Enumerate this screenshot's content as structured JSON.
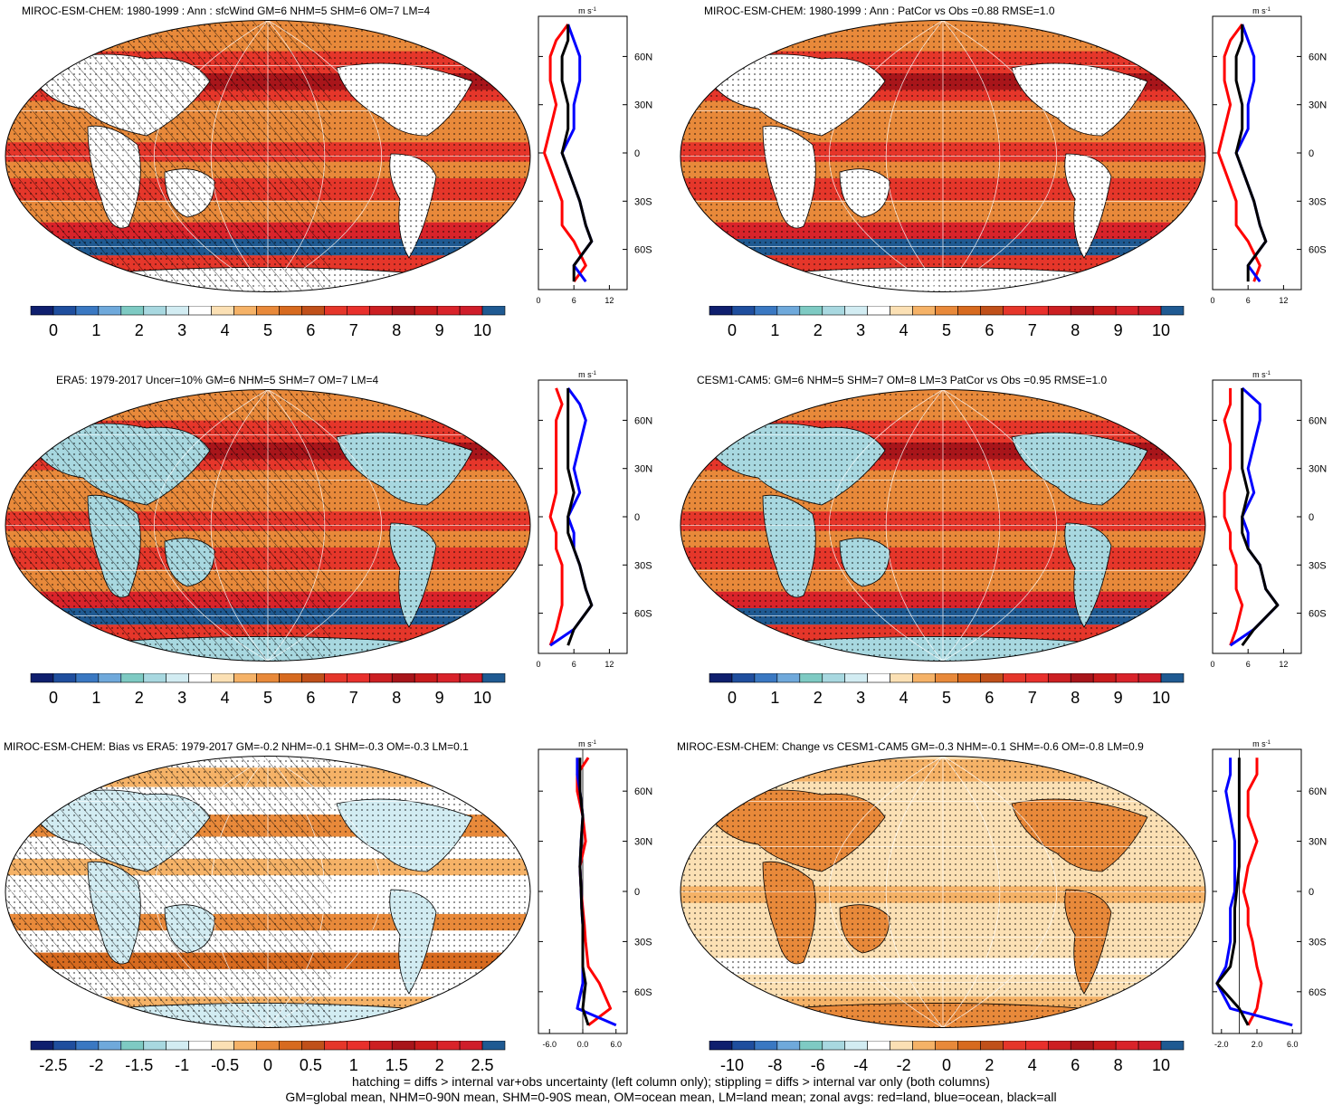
{
  "footer": {
    "line1": "hatching = diffs > internal var+obs uncertainty (left column only); stippling = diffs > internal var only (both columns)",
    "line2": "GM=global mean, NHM=0-90N mean, SHM=0-90S mean, OM=ocean mean, LM=land mean; zonal avgs: red=land, blue=ocean, black=all"
  },
  "palettes": {
    "abs": [
      "#0f1f6e",
      "#1f4e9e",
      "#3a78c2",
      "#6fa9db",
      "#7ecac3",
      "#a8d8e0",
      "#d2ecf2",
      "#ffffff",
      "#fbe0b4",
      "#f5b267",
      "#e8893a",
      "#d76a1f",
      "#c0501a",
      "#e5362a",
      "#e8302c",
      "#cc1f22",
      "#a8151a",
      "#c81b1c",
      "#d9232a",
      "#cf1d2a",
      "#1f5a92"
    ],
    "bias": [
      "#0f1f6e",
      "#1f4e9e",
      "#3a78c2",
      "#6fa9db",
      "#7ecac3",
      "#a8d8e0",
      "#d2ecf2",
      "#ffffff",
      "#fbe0b4",
      "#f5b267",
      "#e8893a",
      "#d76a1f",
      "#c0501a",
      "#e5362a",
      "#e8302c",
      "#cc1f22",
      "#a8151a",
      "#c81b1c",
      "#d9232a",
      "#cf1d2a",
      "#1f5a92"
    ]
  },
  "chart_data": [
    {
      "type": "heatmap",
      "title": "MIROC-ESM-CHEM: 1980-1999 : Ann : sfcWind GM=6 NHM=5 SHM=6 OM=7 LM=4",
      "colorbar_ticks": [
        "0",
        "1",
        "2",
        "3",
        "4",
        "5",
        "6",
        "7",
        "8",
        "9",
        "10"
      ],
      "colorbar_range": [
        0,
        10
      ],
      "zonal": {
        "unit": "m s-1",
        "xticks": [
          "0",
          "6",
          "12"
        ],
        "xrange": [
          0,
          15
        ],
        "lat_ticks": [
          "60N",
          "30N",
          "0",
          "30S",
          "60S"
        ],
        "land": [
          [
            80,
            5
          ],
          [
            70,
            3
          ],
          [
            60,
            2
          ],
          [
            45,
            2
          ],
          [
            30,
            3
          ],
          [
            15,
            2
          ],
          [
            0,
            1
          ],
          [
            -10,
            2
          ],
          [
            -20,
            3
          ],
          [
            -30,
            4
          ],
          [
            -45,
            4
          ],
          [
            -55,
            6
          ],
          [
            -70,
            8
          ],
          [
            -80,
            6
          ]
        ],
        "ocean": [
          [
            80,
            5
          ],
          [
            70,
            6
          ],
          [
            60,
            7
          ],
          [
            45,
            7
          ],
          [
            30,
            6
          ],
          [
            15,
            6
          ],
          [
            0,
            4
          ],
          [
            -10,
            5
          ],
          [
            -20,
            6
          ],
          [
            -30,
            7
          ],
          [
            -45,
            8
          ],
          [
            -55,
            9
          ],
          [
            -70,
            6
          ],
          [
            -80,
            8
          ]
        ],
        "all": [
          [
            80,
            5
          ],
          [
            70,
            5
          ],
          [
            60,
            4
          ],
          [
            45,
            4
          ],
          [
            30,
            5
          ],
          [
            15,
            5
          ],
          [
            0,
            4
          ],
          [
            -10,
            5
          ],
          [
            -20,
            6
          ],
          [
            -30,
            7
          ],
          [
            -45,
            8
          ],
          [
            -55,
            9
          ],
          [
            -70,
            6
          ],
          [
            -80,
            6
          ]
        ]
      },
      "hatched": true
    },
    {
      "type": "heatmap",
      "title": "MIROC-ESM-CHEM: 1980-1999 : Ann : PatCor vs Obs =0.88 RMSE=1.0",
      "colorbar_ticks": [
        "0",
        "1",
        "2",
        "3",
        "4",
        "5",
        "6",
        "7",
        "8",
        "9",
        "10"
      ],
      "colorbar_range": [
        0,
        10
      ],
      "zonal": {
        "unit": "m s-1",
        "xticks": [
          "0",
          "6",
          "12"
        ],
        "xrange": [
          0,
          15
        ],
        "lat_ticks": [
          "60N",
          "30N",
          "0",
          "30S",
          "60S"
        ],
        "land": [
          [
            80,
            5
          ],
          [
            70,
            3
          ],
          [
            60,
            2
          ],
          [
            45,
            2
          ],
          [
            30,
            3
          ],
          [
            15,
            2
          ],
          [
            0,
            1
          ],
          [
            -10,
            2
          ],
          [
            -20,
            3
          ],
          [
            -30,
            4
          ],
          [
            -45,
            4
          ],
          [
            -55,
            6
          ],
          [
            -70,
            8
          ],
          [
            -80,
            7
          ]
        ],
        "ocean": [
          [
            80,
            5
          ],
          [
            70,
            6
          ],
          [
            60,
            7
          ],
          [
            45,
            7
          ],
          [
            30,
            6
          ],
          [
            15,
            6
          ],
          [
            0,
            4
          ],
          [
            -10,
            5
          ],
          [
            -20,
            6
          ],
          [
            -30,
            7
          ],
          [
            -45,
            8
          ],
          [
            -55,
            9
          ],
          [
            -70,
            6
          ],
          [
            -80,
            8
          ]
        ],
        "all": [
          [
            80,
            5
          ],
          [
            70,
            5
          ],
          [
            60,
            4
          ],
          [
            45,
            4
          ],
          [
            30,
            5
          ],
          [
            15,
            5
          ],
          [
            0,
            4
          ],
          [
            -10,
            5
          ],
          [
            -20,
            6
          ],
          [
            -30,
            7
          ],
          [
            -45,
            8
          ],
          [
            -55,
            9
          ],
          [
            -70,
            6
          ],
          [
            -80,
            6
          ]
        ]
      },
      "hatched": false
    },
    {
      "type": "heatmap",
      "title": "ERA5: 1979-2017 Uncer=10% GM=6 NHM=5 SHM=7 OM=7 LM=4",
      "colorbar_ticks": [
        "0",
        "1",
        "2",
        "3",
        "4",
        "5",
        "6",
        "7",
        "8",
        "9",
        "10"
      ],
      "colorbar_range": [
        0,
        10
      ],
      "zonal": {
        "unit": "m s-1",
        "xticks": [
          "0",
          "6",
          "12"
        ],
        "xrange": [
          0,
          15
        ],
        "lat_ticks": [
          "60N",
          "30N",
          "0",
          "30S",
          "60S"
        ],
        "land": [
          [
            80,
            3
          ],
          [
            70,
            4
          ],
          [
            60,
            3
          ],
          [
            45,
            3
          ],
          [
            30,
            3
          ],
          [
            15,
            3
          ],
          [
            0,
            2
          ],
          [
            -10,
            3
          ],
          [
            -20,
            3
          ],
          [
            -30,
            4
          ],
          [
            -45,
            4
          ],
          [
            -55,
            4
          ],
          [
            -70,
            3
          ],
          [
            -80,
            2
          ]
        ],
        "ocean": [
          [
            80,
            5
          ],
          [
            70,
            7
          ],
          [
            60,
            8
          ],
          [
            45,
            7
          ],
          [
            30,
            6
          ],
          [
            15,
            7
          ],
          [
            0,
            5
          ],
          [
            -10,
            6
          ],
          [
            -20,
            6
          ],
          [
            -30,
            7
          ],
          [
            -45,
            8
          ],
          [
            -55,
            9
          ],
          [
            -70,
            6
          ],
          [
            -80,
            2
          ]
        ],
        "all": [
          [
            80,
            5
          ],
          [
            70,
            5
          ],
          [
            60,
            5
          ],
          [
            45,
            5
          ],
          [
            30,
            5
          ],
          [
            15,
            6
          ],
          [
            0,
            5
          ],
          [
            -10,
            5
          ],
          [
            -20,
            6
          ],
          [
            -30,
            7
          ],
          [
            -45,
            8
          ],
          [
            -55,
            9
          ],
          [
            -70,
            6
          ],
          [
            -80,
            5
          ]
        ]
      },
      "hatched": true
    },
    {
      "type": "heatmap",
      "title": "CESM1-CAM5: GM=6 NHM=5 SHM=7 OM=8 LM=3 PatCor vs Obs =0.95 RMSE=1.0",
      "colorbar_ticks": [
        "0",
        "1",
        "2",
        "3",
        "4",
        "5",
        "6",
        "7",
        "8",
        "9",
        "10"
      ],
      "colorbar_range": [
        0,
        10
      ],
      "zonal": {
        "unit": "m s-1",
        "xticks": [
          "0",
          "6",
          "12"
        ],
        "xrange": [
          0,
          15
        ],
        "lat_ticks": [
          "60N",
          "30N",
          "0",
          "30S",
          "60S"
        ],
        "land": [
          [
            80,
            3
          ],
          [
            70,
            3
          ],
          [
            60,
            2
          ],
          [
            45,
            3
          ],
          [
            30,
            3
          ],
          [
            15,
            2
          ],
          [
            0,
            2
          ],
          [
            -10,
            3
          ],
          [
            -20,
            3
          ],
          [
            -30,
            4
          ],
          [
            -45,
            4
          ],
          [
            -55,
            5
          ],
          [
            -70,
            4
          ],
          [
            -80,
            3
          ]
        ],
        "ocean": [
          [
            80,
            5
          ],
          [
            70,
            8
          ],
          [
            60,
            8
          ],
          [
            45,
            7
          ],
          [
            30,
            6
          ],
          [
            15,
            7
          ],
          [
            0,
            5
          ],
          [
            -10,
            6
          ],
          [
            -20,
            6
          ],
          [
            -30,
            8
          ],
          [
            -45,
            9
          ],
          [
            -55,
            11
          ],
          [
            -70,
            7
          ],
          [
            -80,
            3
          ]
        ],
        "all": [
          [
            80,
            5
          ],
          [
            70,
            5
          ],
          [
            60,
            5
          ],
          [
            45,
            5
          ],
          [
            30,
            5
          ],
          [
            15,
            6
          ],
          [
            0,
            5
          ],
          [
            -10,
            5
          ],
          [
            -20,
            6
          ],
          [
            -30,
            8
          ],
          [
            -45,
            9
          ],
          [
            -55,
            11
          ],
          [
            -70,
            7
          ],
          [
            -80,
            5
          ]
        ]
      },
      "hatched": false
    },
    {
      "type": "heatmap",
      "title": "MIROC-ESM-CHEM: Bias vs ERA5: 1979-2017 GM=-0.2 NHM=-0.1 SHM=-0.3 OM=-0.3 LM=0.1",
      "colorbar_ticks": [
        "-2.5",
        "-2",
        "-1.5",
        "-1",
        "-0.5",
        "0",
        "0.5",
        "1",
        "1.5",
        "2",
        "2.5"
      ],
      "colorbar_range": [
        -2.5,
        2.5
      ],
      "zonal": {
        "unit": "m s-1",
        "xticks": [
          "-6.0",
          "0.0",
          "6.0"
        ],
        "xrange": [
          -8,
          8
        ],
        "lat_ticks": [
          "60N",
          "30N",
          "0",
          "30S",
          "60S"
        ],
        "land": [
          [
            80,
            1
          ],
          [
            70,
            -1
          ],
          [
            60,
            -1
          ],
          [
            45,
            0
          ],
          [
            30,
            0.5
          ],
          [
            15,
            -0.5
          ],
          [
            0,
            -0.3
          ],
          [
            -10,
            0
          ],
          [
            -20,
            0.3
          ],
          [
            -30,
            0.5
          ],
          [
            -45,
            1
          ],
          [
            -55,
            3
          ],
          [
            -70,
            5
          ],
          [
            -80,
            1
          ]
        ],
        "ocean": [
          [
            80,
            -1
          ],
          [
            70,
            -1
          ],
          [
            60,
            -0.5
          ],
          [
            45,
            0
          ],
          [
            30,
            -0.3
          ],
          [
            15,
            -0.5
          ],
          [
            0,
            -0.3
          ],
          [
            -10,
            -0.2
          ],
          [
            -20,
            0
          ],
          [
            -30,
            0
          ],
          [
            -45,
            0
          ],
          [
            -55,
            0
          ],
          [
            -70,
            -1
          ],
          [
            -80,
            6
          ]
        ],
        "all": [
          [
            80,
            -0.5
          ],
          [
            70,
            -0.5
          ],
          [
            60,
            -0.5
          ],
          [
            45,
            0
          ],
          [
            30,
            -0.3
          ],
          [
            15,
            -0.5
          ],
          [
            0,
            -0.3
          ],
          [
            -10,
            -0.2
          ],
          [
            -20,
            0
          ],
          [
            -30,
            0
          ],
          [
            -45,
            0
          ],
          [
            -55,
            0.5
          ],
          [
            -70,
            0
          ],
          [
            -80,
            1
          ]
        ]
      },
      "hatched": true
    },
    {
      "type": "heatmap",
      "title": "MIROC-ESM-CHEM: Change vs CESM1-CAM5 GM=-0.3 NHM=-0.1 SHM=-0.6 OM=-0.8 LM=0.9",
      "colorbar_ticks": [
        "-10",
        "-8",
        "-6",
        "-4",
        "-2",
        "0",
        "2",
        "4",
        "6",
        "8",
        "10"
      ],
      "colorbar_range": [
        -10,
        10
      ],
      "zonal": {
        "unit": "m s-1",
        "xticks": [
          "-2.0",
          "2.0",
          "6.0"
        ],
        "xrange": [
          -3,
          7
        ],
        "lat_ticks": [
          "60N",
          "30N",
          "0",
          "30S",
          "60S"
        ],
        "land": [
          [
            80,
            2
          ],
          [
            70,
            2
          ],
          [
            60,
            1
          ],
          [
            45,
            1
          ],
          [
            30,
            2
          ],
          [
            15,
            1
          ],
          [
            0,
            0.5
          ],
          [
            -10,
            1
          ],
          [
            -20,
            1
          ],
          [
            -30,
            1.5
          ],
          [
            -45,
            2
          ],
          [
            -55,
            2.5
          ],
          [
            -70,
            2
          ],
          [
            -80,
            1
          ]
        ],
        "ocean": [
          [
            80,
            -1
          ],
          [
            70,
            -1
          ],
          [
            60,
            -1.5
          ],
          [
            45,
            -1
          ],
          [
            30,
            -0.5
          ],
          [
            15,
            -0.5
          ],
          [
            0,
            -0.5
          ],
          [
            -10,
            -1
          ],
          [
            -20,
            -1
          ],
          [
            -30,
            -1
          ],
          [
            -45,
            -1.5
          ],
          [
            -55,
            -2.5
          ],
          [
            -70,
            -1
          ],
          [
            -80,
            6
          ]
        ],
        "all": [
          [
            80,
            0
          ],
          [
            70,
            0
          ],
          [
            60,
            0
          ],
          [
            45,
            0
          ],
          [
            30,
            0
          ],
          [
            15,
            0
          ],
          [
            0,
            -0.3
          ],
          [
            -10,
            -0.5
          ],
          [
            -20,
            -0.5
          ],
          [
            -30,
            -0.5
          ],
          [
            -45,
            -1
          ],
          [
            -55,
            -2.5
          ],
          [
            -70,
            0
          ],
          [
            -80,
            1
          ]
        ]
      },
      "hatched": false
    }
  ]
}
